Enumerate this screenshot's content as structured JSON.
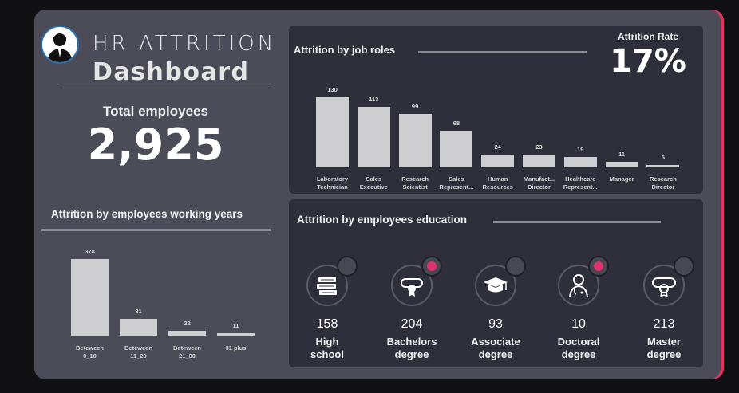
{
  "header": {
    "title_top": "HR ATTRITION",
    "title_main": "Dashboard"
  },
  "total": {
    "label": "Total employees",
    "value": "2,925"
  },
  "attrition_rate": {
    "label": "Attrition Rate",
    "value": "17%"
  },
  "job_roles": {
    "title": "Attrition by job roles",
    "items": [
      {
        "label": "Laboratory\nTechnician",
        "value": "130"
      },
      {
        "label": "Sales\nExecutive",
        "value": "113"
      },
      {
        "label": "Research\nScientist",
        "value": "99"
      },
      {
        "label": "Sales\nRepresent...",
        "value": "68"
      },
      {
        "label": "Human\nResources",
        "value": "24"
      },
      {
        "label": "Manufact...\nDirector",
        "value": "23"
      },
      {
        "label": "Healthcare\nRepresent...",
        "value": "19"
      },
      {
        "label": "Manager",
        "value": "11"
      },
      {
        "label": "Research\nDirector",
        "value": "5"
      }
    ]
  },
  "working_years": {
    "title": "Attrition by employees working years",
    "items": [
      {
        "label": "Beteween\n0_10",
        "value": "378"
      },
      {
        "label": "Beteween\n11_20",
        "value": "81"
      },
      {
        "label": "Beteween\n21_30",
        "value": "22"
      },
      {
        "label": "31 plus",
        "value": "11"
      }
    ]
  },
  "education": {
    "title": "Attrition by employees education",
    "items": [
      {
        "name": "High\nschool",
        "count": "158",
        "icon": "books-icon",
        "badge": "#474853"
      },
      {
        "name": "Bachelors\ndegree",
        "count": "204",
        "icon": "diploma-icon",
        "badge": "#e0336b"
      },
      {
        "name": "Associate\ndegree",
        "count": "93",
        "icon": "graduation-cap-icon",
        "badge": "#474853"
      },
      {
        "name": "Doctoral\ndegree",
        "count": "10",
        "icon": "doctor-icon",
        "badge": "#e0336b"
      },
      {
        "name": "Master\ndegree",
        "count": "213",
        "icon": "certificate-icon",
        "badge": "#474853"
      }
    ]
  },
  "chart_data": [
    {
      "type": "bar",
      "title": "Attrition by job roles",
      "categories": [
        "Laboratory Technician",
        "Sales Executive",
        "Research Scientist",
        "Sales Represent...",
        "Human Resources",
        "Manufact... Director",
        "Healthcare Represent...",
        "Manager",
        "Research Director"
      ],
      "values": [
        130,
        113,
        99,
        68,
        24,
        23,
        19,
        11,
        5
      ]
    },
    {
      "type": "bar",
      "title": "Attrition by employees working years",
      "categories": [
        "Beteween 0_10",
        "Beteween 11_20",
        "Beteween 21_30",
        "31 plus"
      ],
      "values": [
        378,
        81,
        22,
        11
      ]
    }
  ],
  "colors": {
    "accent": "#e0335f",
    "bar": "#cfcfd1",
    "panel": "#2f2f3b",
    "background": "#4b4c58"
  }
}
